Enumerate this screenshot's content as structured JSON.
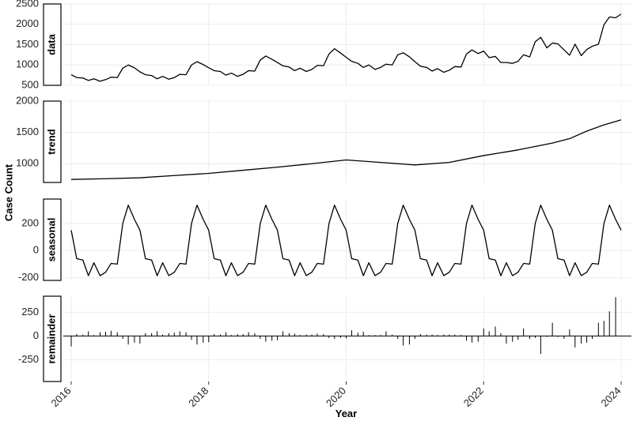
{
  "chart_data": {
    "type": "line",
    "title": "",
    "xlabel": "Year",
    "ylabel": "Case Count",
    "x_ticks": [
      "2016",
      "2018",
      "2020",
      "2022",
      "2024"
    ],
    "xlim": [
      2016,
      2024
    ],
    "grid": true,
    "panels": [
      {
        "name": "data",
        "mark": "line",
        "ylim": [
          500,
          2500
        ],
        "yticks": [
          500,
          1000,
          1500,
          2000,
          2500
        ],
        "x": [
          2016.0,
          2016.08,
          2016.17,
          2016.25,
          2016.33,
          2016.42,
          2016.5,
          2016.58,
          2016.67,
          2016.75,
          2016.83,
          2016.92,
          2017.0,
          2017.08,
          2017.17,
          2017.25,
          2017.33,
          2017.42,
          2017.5,
          2017.58,
          2017.67,
          2017.75,
          2017.83,
          2017.92,
          2018.0,
          2018.08,
          2018.17,
          2018.25,
          2018.33,
          2018.42,
          2018.5,
          2018.58,
          2018.67,
          2018.75,
          2018.83,
          2018.92,
          2019.0,
          2019.08,
          2019.17,
          2019.25,
          2019.33,
          2019.42,
          2019.5,
          2019.58,
          2019.67,
          2019.75,
          2019.83,
          2019.92,
          2020.0,
          2020.08,
          2020.17,
          2020.25,
          2020.33,
          2020.42,
          2020.5,
          2020.58,
          2020.67,
          2020.75,
          2020.83,
          2020.92,
          2021.0,
          2021.08,
          2021.17,
          2021.25,
          2021.33,
          2021.42,
          2021.5,
          2021.58,
          2021.67,
          2021.75,
          2021.83,
          2021.92,
          2022.0,
          2022.08,
          2022.17,
          2022.25,
          2022.33,
          2022.42,
          2022.5,
          2022.58,
          2022.67,
          2022.75,
          2022.83,
          2022.92,
          2023.0,
          2023.08,
          2023.17,
          2023.25,
          2023.33,
          2023.42,
          2023.5,
          2023.58,
          2023.67,
          2023.75,
          2023.83,
          2023.92,
          2024.0
        ],
        "y": [
          760,
          690,
          680,
          620,
          660,
          600,
          640,
          700,
          690,
          920,
          1000,
          930,
          830,
          760,
          740,
          660,
          720,
          650,
          690,
          770,
          760,
          1000,
          1080,
          1010,
          930,
          860,
          840,
          750,
          800,
          720,
          770,
          860,
          850,
          1120,
          1220,
          1140,
          1060,
          980,
          950,
          860,
          920,
          840,
          890,
          990,
          980,
          1270,
          1400,
          1290,
          1190,
          1090,
          1040,
          940,
          1000,
          890,
          940,
          1020,
          1000,
          1250,
          1300,
          1200,
          1080,
          970,
          940,
          850,
          910,
          820,
          870,
          960,
          950,
          1270,
          1370,
          1280,
          1340,
          1180,
          1210,
          1060,
          1060,
          1040,
          1090,
          1250,
          1200,
          1570,
          1680,
          1420,
          1540,
          1520,
          1370,
          1240,
          1510,
          1230,
          1380,
          1460,
          1510,
          1990,
          2180,
          2160,
          2250
        ]
      },
      {
        "name": "trend",
        "mark": "line",
        "ylim": [
          700,
          2000
        ],
        "yticks": [
          1000,
          1500,
          2000
        ],
        "x": [
          2016.0,
          2016.5,
          2017.0,
          2017.5,
          2018.0,
          2018.5,
          2019.0,
          2019.5,
          2020.0,
          2020.5,
          2021.0,
          2021.5,
          2022.0,
          2022.5,
          2023.0,
          2023.25,
          2023.5,
          2023.75,
          2024.0
        ],
        "y": [
          748,
          760,
          775,
          810,
          845,
          895,
          945,
          1000,
          1060,
          1020,
          980,
          1020,
          1130,
          1220,
          1330,
          1400,
          1520,
          1620,
          1700
        ]
      },
      {
        "name": "seasonal",
        "mark": "line",
        "ylim": [
          -220,
          380
        ],
        "yticks": [
          -200,
          0,
          200
        ],
        "x": [
          2016.0,
          2016.08,
          2016.17,
          2016.25,
          2016.33,
          2016.42,
          2016.5,
          2016.58,
          2016.67,
          2016.75,
          2016.83,
          2016.92,
          2017.0,
          2017.08,
          2017.17,
          2017.25,
          2017.33,
          2017.42,
          2017.5,
          2017.58,
          2017.67,
          2017.75,
          2017.83,
          2017.92,
          2018.0,
          2018.08,
          2018.17,
          2018.25,
          2018.33,
          2018.42,
          2018.5,
          2018.58,
          2018.67,
          2018.75,
          2018.83,
          2018.92,
          2019.0,
          2019.08,
          2019.17,
          2019.25,
          2019.33,
          2019.42,
          2019.5,
          2019.58,
          2019.67,
          2019.75,
          2019.83,
          2019.92,
          2020.0,
          2020.08,
          2020.17,
          2020.25,
          2020.33,
          2020.42,
          2020.5,
          2020.58,
          2020.67,
          2020.75,
          2020.83,
          2020.92,
          2021.0,
          2021.08,
          2021.17,
          2021.25,
          2021.33,
          2021.42,
          2021.5,
          2021.58,
          2021.67,
          2021.75,
          2021.83,
          2021.92,
          2022.0,
          2022.08,
          2022.17,
          2022.25,
          2022.33,
          2022.42,
          2022.5,
          2022.58,
          2022.67,
          2022.75,
          2022.83,
          2022.92,
          2023.0,
          2023.08,
          2023.17,
          2023.25,
          2023.33,
          2023.42,
          2023.5,
          2023.58,
          2023.67,
          2023.75,
          2023.83,
          2023.92,
          2024.0
        ],
        "y": [
          150,
          -60,
          -70,
          -185,
          -90,
          -185,
          -160,
          -95,
          -100,
          200,
          335,
          230,
          150,
          -60,
          -70,
          -185,
          -90,
          -185,
          -160,
          -95,
          -100,
          200,
          335,
          230,
          150,
          -60,
          -70,
          -185,
          -90,
          -185,
          -160,
          -95,
          -100,
          200,
          335,
          230,
          150,
          -60,
          -70,
          -185,
          -90,
          -185,
          -160,
          -95,
          -100,
          200,
          335,
          230,
          150,
          -60,
          -70,
          -185,
          -90,
          -185,
          -160,
          -95,
          -100,
          200,
          335,
          230,
          150,
          -60,
          -70,
          -185,
          -90,
          -185,
          -160,
          -95,
          -100,
          200,
          335,
          230,
          150,
          -60,
          -70,
          -185,
          -90,
          -185,
          -160,
          -95,
          -100,
          200,
          335,
          230,
          150,
          -60,
          -70,
          -185,
          -90,
          -185,
          -160,
          -95,
          -100,
          200,
          335,
          230,
          150
        ]
      },
      {
        "name": "remainder",
        "mark": "bars",
        "ylim": [
          -480,
          420
        ],
        "yticks": [
          -250,
          0,
          250
        ],
        "x": [
          2016.0,
          2016.08,
          2016.17,
          2016.25,
          2016.33,
          2016.42,
          2016.5,
          2016.58,
          2016.67,
          2016.75,
          2016.83,
          2016.92,
          2017.0,
          2017.08,
          2017.17,
          2017.25,
          2017.33,
          2017.42,
          2017.5,
          2017.58,
          2017.67,
          2017.75,
          2017.83,
          2017.92,
          2018.0,
          2018.08,
          2018.17,
          2018.25,
          2018.33,
          2018.42,
          2018.5,
          2018.58,
          2018.67,
          2018.75,
          2018.83,
          2018.92,
          2019.0,
          2019.08,
          2019.17,
          2019.25,
          2019.33,
          2019.42,
          2019.5,
          2019.58,
          2019.67,
          2019.75,
          2019.83,
          2019.92,
          2020.0,
          2020.08,
          2020.17,
          2020.25,
          2020.33,
          2020.42,
          2020.5,
          2020.58,
          2020.67,
          2020.75,
          2020.83,
          2020.92,
          2021.0,
          2021.08,
          2021.17,
          2021.25,
          2021.33,
          2021.42,
          2021.5,
          2021.58,
          2021.67,
          2021.75,
          2021.83,
          2021.92,
          2022.0,
          2022.08,
          2022.17,
          2022.25,
          2022.33,
          2022.42,
          2022.5,
          2022.58,
          2022.67,
          2022.75,
          2022.83,
          2022.92,
          2023.0,
          2023.08,
          2023.17,
          2023.25,
          2023.33,
          2023.42,
          2023.5,
          2023.58,
          2023.67,
          2023.75,
          2023.83,
          2023.92,
          2024.0
        ],
        "y": [
          -110,
          20,
          15,
          50,
          10,
          40,
          45,
          55,
          40,
          -30,
          -90,
          -70,
          -80,
          30,
          30,
          50,
          15,
          30,
          35,
          50,
          40,
          -40,
          -90,
          -70,
          -65,
          20,
          15,
          40,
          10,
          20,
          20,
          40,
          30,
          -30,
          -60,
          -50,
          -45,
          50,
          30,
          25,
          10,
          15,
          15,
          25,
          20,
          -20,
          -30,
          -20,
          -25,
          60,
          35,
          45,
          10,
          10,
          10,
          50,
          15,
          -30,
          -100,
          -90,
          -30,
          20,
          15,
          15,
          10,
          15,
          15,
          15,
          10,
          -50,
          -70,
          -60,
          80,
          50,
          100,
          30,
          -80,
          -60,
          -40,
          80,
          -30,
          -20,
          -190,
          -10,
          140,
          -10,
          -30,
          70,
          -120,
          -80,
          -70,
          -30,
          140,
          160,
          260,
          410,
          0
        ]
      }
    ]
  }
}
